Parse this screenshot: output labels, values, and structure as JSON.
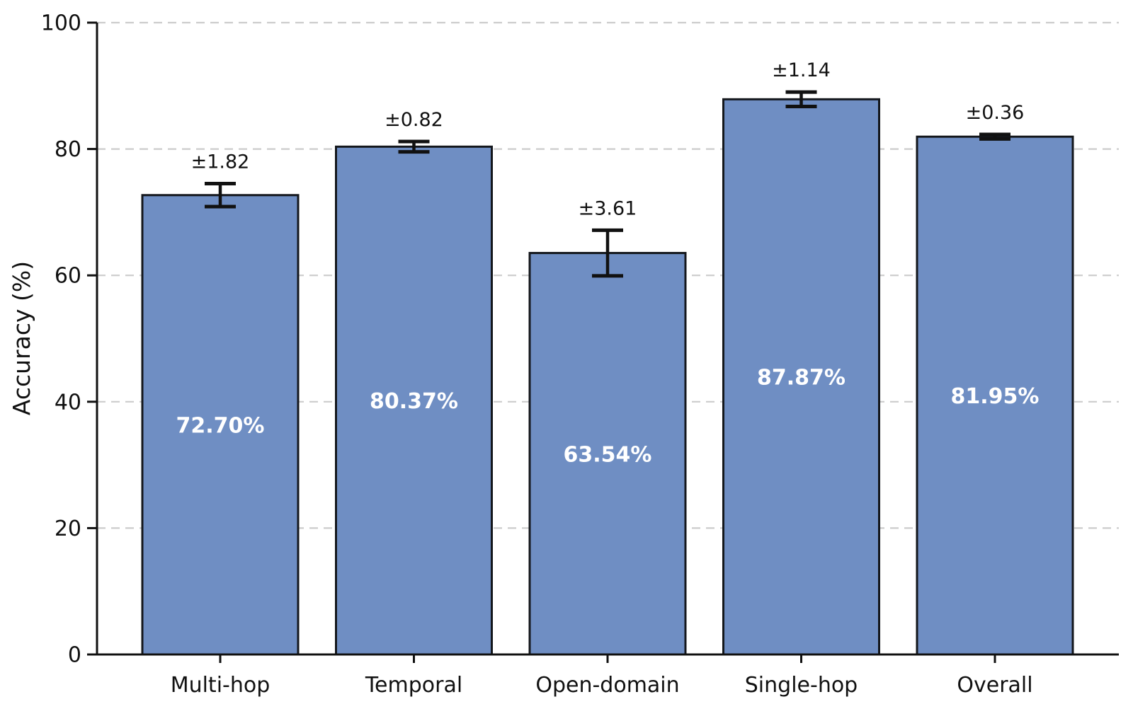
{
  "chart_data": {
    "type": "bar",
    "categories": [
      "Multi-hop",
      "Temporal",
      "Open-domain",
      "Single-hop",
      "Overall"
    ],
    "values": [
      72.7,
      80.37,
      63.54,
      87.87,
      81.95
    ],
    "errors": [
      1.82,
      0.82,
      3.61,
      1.14,
      0.36
    ],
    "bar_labels": [
      "72.70%",
      "80.37%",
      "63.54%",
      "87.87%",
      "81.95%"
    ],
    "error_labels": [
      "±1.82",
      "±0.82",
      "±3.61",
      "±1.14",
      "±0.36"
    ],
    "title": "",
    "xlabel": "",
    "ylabel": "Accuracy (%)",
    "ylim": [
      0,
      100
    ],
    "yticks": [
      0,
      20,
      40,
      60,
      80,
      100
    ],
    "ytick_labels": [
      "0",
      "20",
      "40",
      "60",
      "80",
      "100"
    ],
    "grid": "horizontal-dashed",
    "legend": "none",
    "colors": {
      "bar_fill": "#6f8ec3",
      "bar_edge": "#14171c",
      "error_bar": "#111111",
      "grid_line": "#cccccc",
      "axis_line": "#111111",
      "tick_text": "#111111",
      "inside_label_text": "#ffffff",
      "background": "#ffffff"
    }
  }
}
